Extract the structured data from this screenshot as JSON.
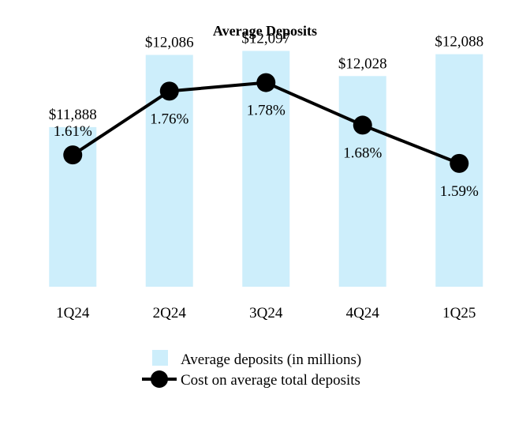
{
  "chart_data": {
    "type": "bar",
    "title": "Average Deposits",
    "categories": [
      "1Q24",
      "2Q24",
      "3Q24",
      "4Q24",
      "1Q25"
    ],
    "series": [
      {
        "name": "Average deposits (in millions)",
        "kind": "bar",
        "values": [
          11888,
          12086,
          12097,
          12028,
          12088
        ],
        "labels": [
          "$11,888",
          "$12,086",
          "$12,097",
          "$12,028",
          "$12,088"
        ],
        "color": "#cdeefb"
      },
      {
        "name": "Cost on average total deposits",
        "kind": "line",
        "values": [
          1.61,
          1.76,
          1.78,
          1.68,
          1.59
        ],
        "labels": [
          "1.61%",
          "1.76%",
          "1.78%",
          "1.68%",
          "1.59%"
        ],
        "color": "#000000"
      }
    ],
    "ylim_bar": [
      11450,
      12150
    ],
    "ylim_line": [
      1.3,
      1.9
    ],
    "legend_position": "bottom-center",
    "xlabel": "",
    "ylabel": "",
    "grid": false
  }
}
